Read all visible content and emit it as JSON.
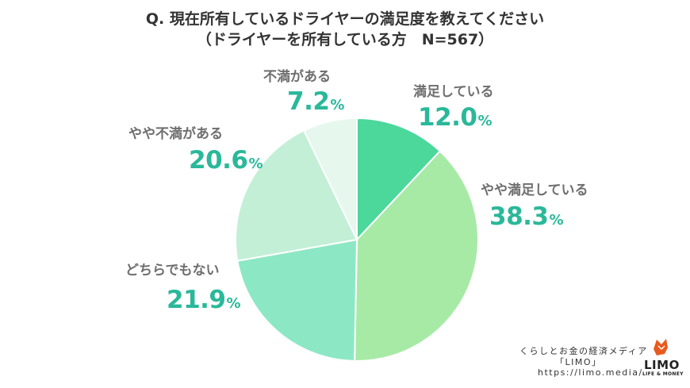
{
  "title_line1": "Q. 現在所有しているドライヤーの満足度を教えてください",
  "title_line2": "（ドライヤーを所有している方　N=567）",
  "chart_data": {
    "type": "pie",
    "title": "Q. 現在所有しているドライヤーの満足度を教えてください",
    "subtitle": "（ドライヤーを所有している方　N=567）",
    "unit": "%",
    "slices": [
      {
        "label": "満足している",
        "value": 12.0,
        "value_text": "12.0",
        "color": "#4cd79b"
      },
      {
        "label": "やや満足している",
        "value": 38.3,
        "value_text": "38.3",
        "color": "#a6eaa6"
      },
      {
        "label": "どちらでもない",
        "value": 21.9,
        "value_text": "21.9",
        "color": "#8ce8c4"
      },
      {
        "label": "やや不満がある",
        "value": 20.6,
        "value_text": "20.6",
        "color": "#c3efd6"
      },
      {
        "label": "不満がある",
        "value": 7.2,
        "value_text": "7.2",
        "color": "#e6f7ee"
      }
    ],
    "start_angle": "12 o'clock",
    "direction": "clockwise"
  },
  "footer": {
    "line1": "くらしとお金の経済メディア",
    "line2": "「LIMO」",
    "line3": "https://limo.media/"
  },
  "logo": {
    "text": "LIMO",
    "subtext": "LIFE & MONEY",
    "color": "#e85a1e"
  }
}
